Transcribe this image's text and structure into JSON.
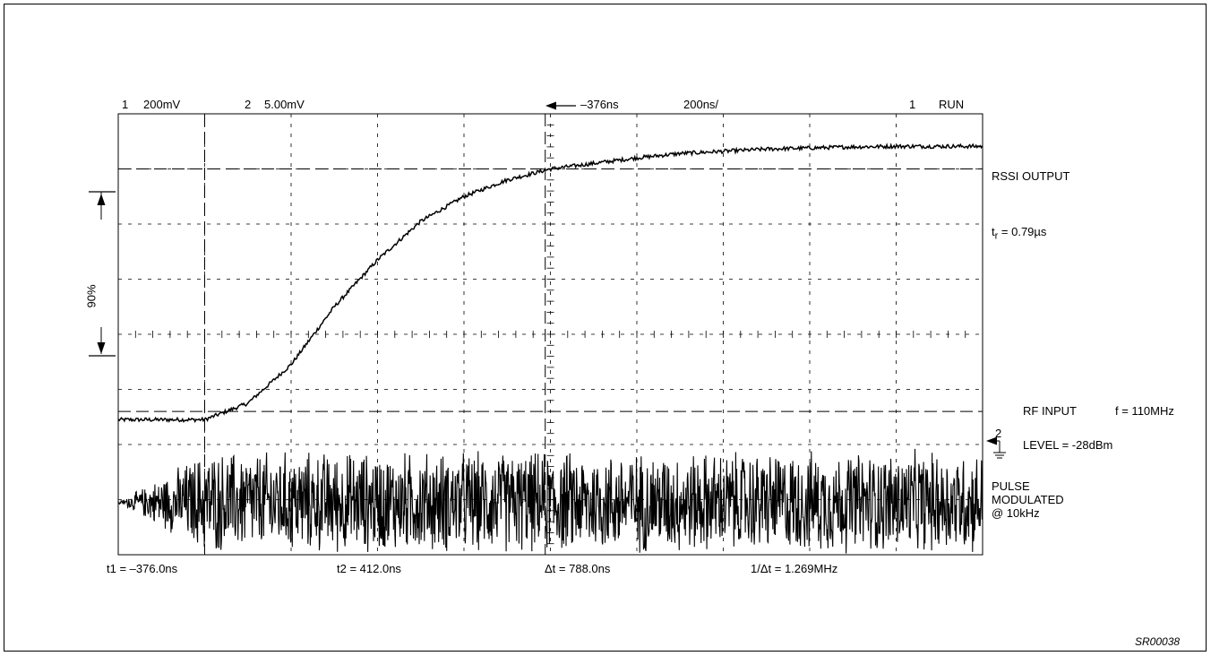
{
  "header": {
    "ch1_number": "1",
    "ch1_scale": "200mV",
    "ch2_number": "2",
    "ch2_scale": "5.00mV",
    "trigger_offset": "–376ns",
    "timebase": "200ns/",
    "trigger_channel": "1",
    "run_state": "RUN"
  },
  "footer": {
    "t1": "t1 = –376.0ns",
    "t2": "t2 = 412.0ns",
    "delta_t": "Δt = 788.0ns",
    "inv_delta_t": "1/Δt = 1.269MHz"
  },
  "annotations": {
    "rssi_output": "RSSI OUTPUT",
    "rise_time_prefix": "t",
    "rise_time_sub": "r",
    "rise_time_value": " = 0.79µs",
    "ninety_percent": "90%",
    "rf_input": "RF INPUT",
    "frequency": "f = 110MHz",
    "ch2_marker": "2",
    "level": "LEVEL = -28dBm",
    "pulse": "PULSE",
    "modulated": "MODULATED",
    "at_10khz": "@ 10kHz"
  },
  "figure_id": "SR00038",
  "chart_data": {
    "type": "line",
    "grid": true,
    "x_timebase": "200ns/",
    "series": [
      {
        "name": "RSSI OUTPUT",
        "channel": 1,
        "x_divisions": [
          0.0,
          1.0,
          1.5,
          2.0,
          2.5,
          3.0,
          3.5,
          4.0,
          4.5,
          5.0,
          5.5,
          6.0,
          6.5,
          7.0,
          7.5,
          8.0,
          8.5,
          9.0,
          9.5,
          10.0
        ],
        "y_divisions": [
          -1.55,
          -1.55,
          -1.25,
          -0.55,
          0.5,
          1.35,
          2.05,
          2.5,
          2.8,
          3.0,
          3.1,
          3.2,
          3.28,
          3.32,
          3.36,
          3.38,
          3.4,
          3.41,
          3.41,
          3.41
        ]
      },
      {
        "name": "RF INPUT",
        "channel": 2,
        "x_divisions": [
          0.0,
          1.0,
          10.0
        ],
        "y_divisions": [
          -3.05,
          -3.05,
          -3.05
        ],
        "envelope_half_height_div": [
          0.0,
          1.0,
          1.0
        ]
      }
    ],
    "cursors_time": [
      -376.0,
      412.0
    ],
    "cursors_y_divisions": [
      -1.4,
      3.0
    ]
  }
}
